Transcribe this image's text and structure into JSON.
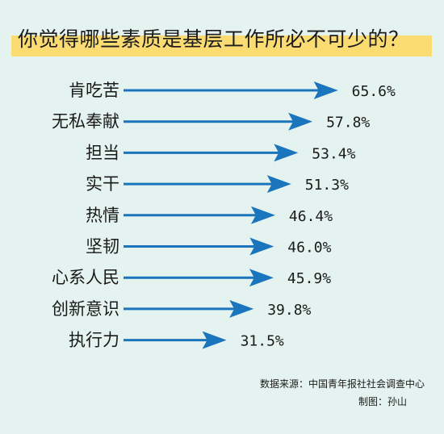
{
  "chart_data": {
    "type": "bar",
    "title": "你觉得哪些素质是基层工作所必不可少的？",
    "categories": [
      "肯吃苦",
      "无私奉献",
      "担当",
      "实干",
      "热情",
      "坚韧",
      "心系人民",
      "创新意识",
      "执行力"
    ],
    "values": [
      65.6,
      57.8,
      53.4,
      51.3,
      46.4,
      46.0,
      45.9,
      39.8,
      31.5
    ],
    "value_labels": [
      "65.6%",
      "57.8%",
      "53.4%",
      "51.3%",
      "46.4%",
      "46.0%",
      "45.9%",
      "39.8%",
      "31.5%"
    ],
    "unit": "%",
    "orientation": "horizontal",
    "mark": "arrow",
    "xlabel": "",
    "ylabel": "",
    "grid": false,
    "colors": {
      "arrow": "#1b75bc",
      "title_band": "#fbdc72",
      "background": "#e4f3f0"
    }
  },
  "source": {
    "data_source": "数据来源：中国青年报社社会调查中心",
    "credit": "制图：孙山"
  }
}
